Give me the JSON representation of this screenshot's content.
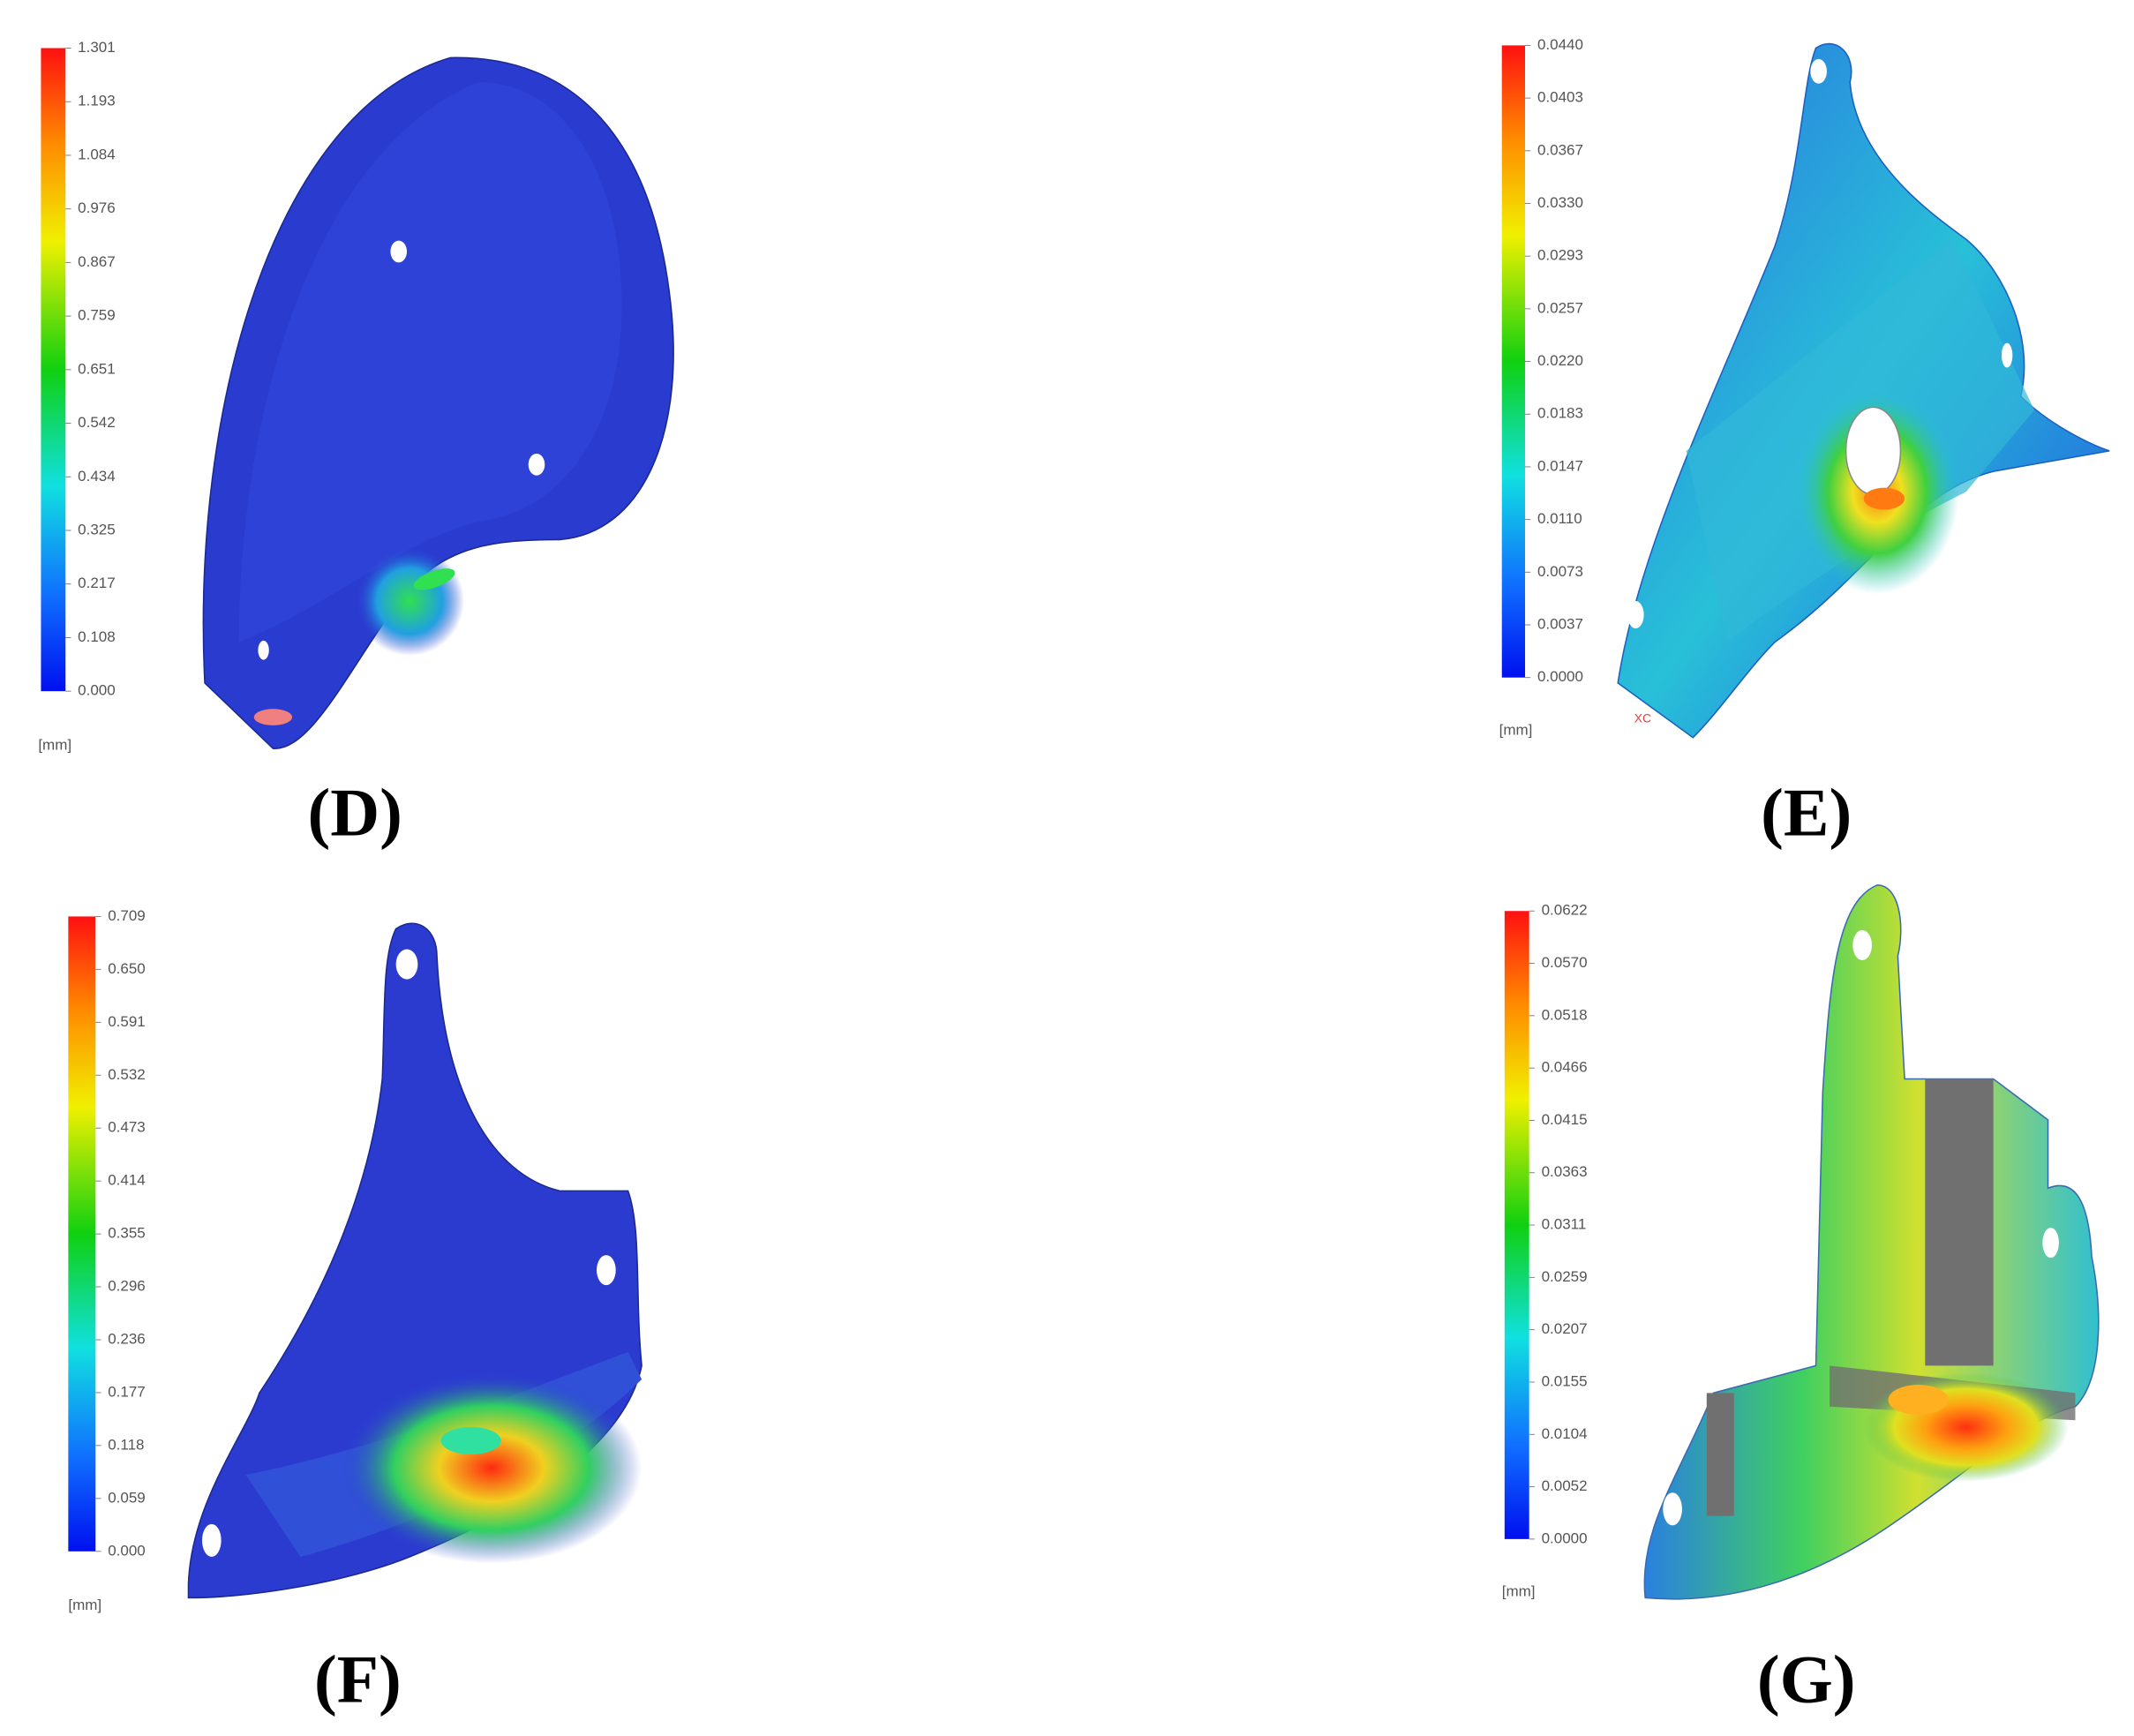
{
  "panels": [
    {
      "label": "(D)",
      "unit": "[mm]",
      "scale": [
        "1.301",
        "1.193",
        "1.084",
        "0.976",
        "0.867",
        "0.759",
        "0.651",
        "0.542",
        "0.434",
        "0.325",
        "0.217",
        "0.108",
        "0.000"
      ]
    },
    {
      "label": "(E)",
      "unit": "[mm]",
      "scale": [
        "0.0440",
        "0.0403",
        "0.0367",
        "0.0330",
        "0.0293",
        "0.0257",
        "0.0220",
        "0.0183",
        "0.0147",
        "0.0110",
        "0.0073",
        "0.0037",
        "0.0000"
      ],
      "axis_triad": "XC"
    },
    {
      "label": "(F)",
      "unit": "[mm]",
      "scale": [
        "0.709",
        "0.650",
        "0.591",
        "0.532",
        "0.473",
        "0.414",
        "0.355",
        "0.296",
        "0.236",
        "0.177",
        "0.118",
        "0.059",
        "0.000"
      ]
    },
    {
      "label": "(G)",
      "unit": "[mm]",
      "scale": [
        "0.0622",
        "0.0570",
        "0.0518",
        "0.0466",
        "0.0415",
        "0.0363",
        "0.0311",
        "0.0259",
        "0.0207",
        "0.0155",
        "0.0104",
        "0.0052",
        "0.0000"
      ]
    }
  ]
}
